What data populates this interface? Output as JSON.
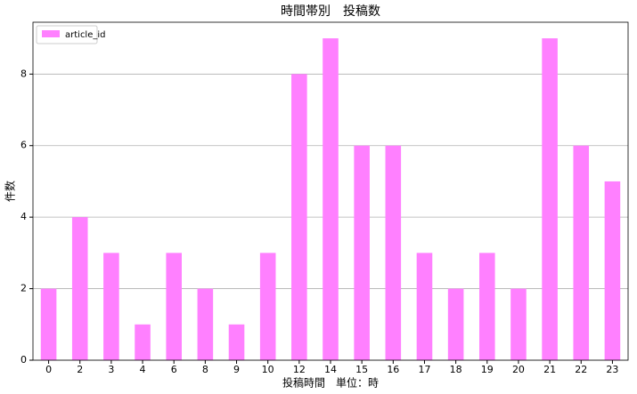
{
  "chart_data": {
    "type": "bar",
    "title": "時間帯別　投稿数",
    "x_label": "投稿時間　単位：時",
    "y_label": "件数",
    "categories": [
      "0",
      "2",
      "3",
      "4",
      "6",
      "8",
      "9",
      "10",
      "12",
      "14",
      "15",
      "16",
      "17",
      "18",
      "19",
      "20",
      "21",
      "22",
      "23"
    ],
    "series": [
      {
        "name": "article_id",
        "color": "#ff80ff",
        "values": [
          2,
          4,
          3,
          1,
          3,
          2,
          1,
          3,
          8,
          9,
          6,
          6,
          3,
          2,
          3,
          2,
          9,
          6,
          5
        ]
      }
    ],
    "ylim": [
      0,
      9.45
    ],
    "yticks": [
      0,
      2,
      4,
      6,
      8
    ],
    "grid": true,
    "legend": "upper left"
  }
}
